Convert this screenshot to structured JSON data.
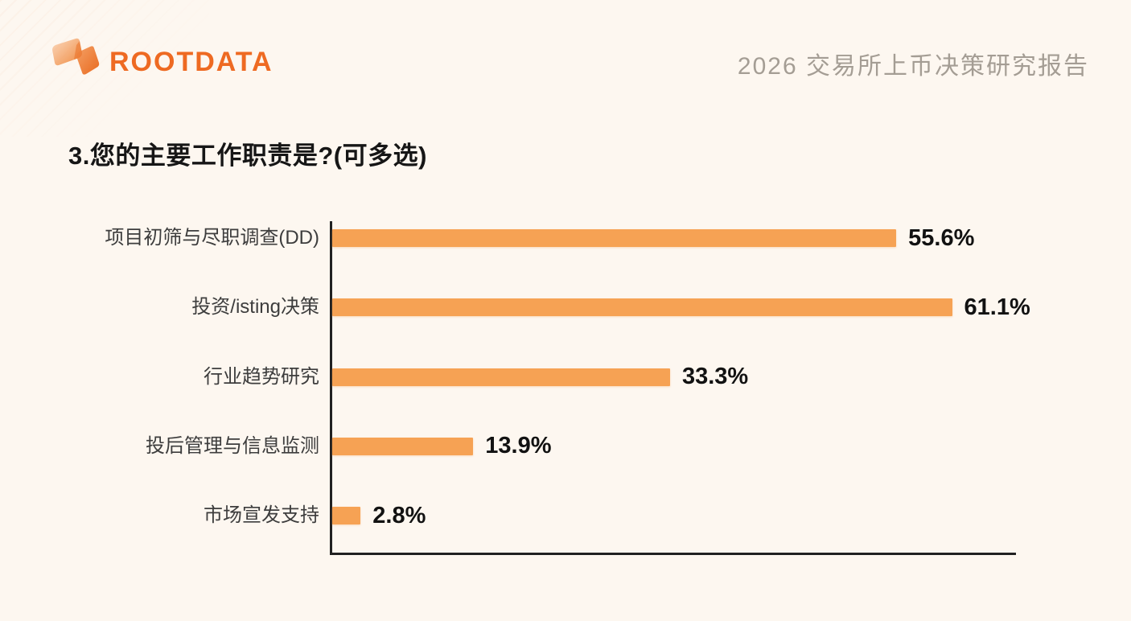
{
  "page": {
    "background_color": "#FDF7F0",
    "accent_color": "#EE6A22",
    "bar_color": "#F6A254",
    "axis_color": "#212121"
  },
  "header": {
    "logo_text": "ROOTDATA",
    "logo_icon": "rootdata-ribbon-mark",
    "report_title": "2026 交易所上币决策研究报告"
  },
  "question": {
    "title": "3.您的主要工作职责是?(可多选)"
  },
  "chart_data": {
    "type": "bar",
    "orientation": "horizontal",
    "title": "3.您的主要工作职责是?(可多选)",
    "categories": [
      "项目初筛与尽职调查(DD)",
      "投资/isting决策",
      "行业趋势研究",
      "投后管理与信息监测",
      "市场宣发支持"
    ],
    "values": [
      55.6,
      61.1,
      33.3,
      13.9,
      2.8
    ],
    "value_labels": [
      "55.6%",
      "61.1%",
      "33.3%",
      "13.9%",
      "2.8%"
    ],
    "xlabel": "",
    "ylabel": "",
    "xlim": [
      0,
      67.4
    ],
    "grid": false,
    "legend": false,
    "bar_color": "#F6A254"
  }
}
